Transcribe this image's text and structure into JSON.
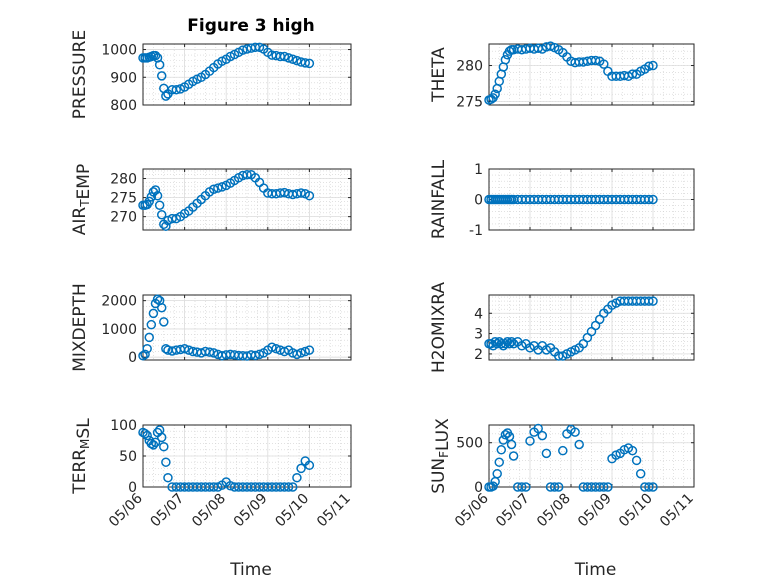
{
  "figure": {
    "title": "Figure 3 high",
    "marker_color": "#0072BD",
    "x_tick_labels": [
      "05/06",
      "05/07",
      "05/08",
      "05/09",
      "05/10",
      "05/11"
    ],
    "x_label": "Time"
  },
  "chart_data": [
    {
      "type": "scatter",
      "ylabel": "PRESSURE",
      "title": "Figure 3 high",
      "xlim": [
        0,
        5
      ],
      "ylim": [
        800,
        1020
      ],
      "yticks": [
        800,
        900,
        1000
      ],
      "grid": true,
      "series": [
        {
          "x": [
            0.0,
            0.05,
            0.1,
            0.15,
            0.2,
            0.25,
            0.3,
            0.35,
            0.4,
            0.45,
            0.5,
            0.55,
            0.6,
            0.7,
            0.8,
            0.9,
            1.0,
            1.1,
            1.2,
            1.3,
            1.4,
            1.5,
            1.6,
            1.7,
            1.8,
            1.9,
            2.0,
            2.1,
            2.2,
            2.3,
            2.4,
            2.5,
            2.6,
            2.7,
            2.8,
            2.9,
            3.0,
            3.1,
            3.2,
            3.3,
            3.4,
            3.5,
            3.6,
            3.7,
            3.8,
            3.9,
            4.0
          ],
          "y": [
            970,
            970,
            970,
            972,
            975,
            978,
            978,
            970,
            945,
            905,
            860,
            832,
            840,
            855,
            855,
            858,
            865,
            875,
            885,
            893,
            900,
            910,
            922,
            935,
            948,
            958,
            965,
            975,
            982,
            990,
            998,
            1002,
            1005,
            1008,
            1008,
            1002,
            990,
            980,
            978,
            975,
            975,
            970,
            965,
            960,
            955,
            952,
            950
          ]
        }
      ]
    },
    {
      "type": "scatter",
      "ylabel": "THETA",
      "xlim": [
        0,
        5
      ],
      "ylim": [
        274.5,
        283
      ],
      "yticks": [
        275,
        280
      ],
      "grid": true,
      "series": [
        {
          "x": [
            0.0,
            0.05,
            0.1,
            0.15,
            0.2,
            0.25,
            0.3,
            0.35,
            0.4,
            0.45,
            0.5,
            0.55,
            0.6,
            0.7,
            0.8,
            0.9,
            1.0,
            1.1,
            1.2,
            1.3,
            1.4,
            1.5,
            1.6,
            1.7,
            1.8,
            1.9,
            2.0,
            2.1,
            2.2,
            2.3,
            2.4,
            2.5,
            2.6,
            2.7,
            2.8,
            2.9,
            3.0,
            3.1,
            3.2,
            3.3,
            3.4,
            3.5,
            3.6,
            3.7,
            3.8,
            3.9,
            4.0
          ],
          "y": [
            275.2,
            275.3,
            275.5,
            276.0,
            276.8,
            277.8,
            278.8,
            279.8,
            280.8,
            281.5,
            282.0,
            282.2,
            282.2,
            282.3,
            282.2,
            282.3,
            282.4,
            282.3,
            282.4,
            282.3,
            282.6,
            282.7,
            282.5,
            282.2,
            281.8,
            281.2,
            280.6,
            280.4,
            280.5,
            280.5,
            280.6,
            280.7,
            280.7,
            280.6,
            280.2,
            279.2,
            278.5,
            278.5,
            278.5,
            278.6,
            278.5,
            278.8,
            278.8,
            279.2,
            279.5,
            279.9,
            280.0
          ]
        }
      ]
    },
    {
      "type": "scatter",
      "ylabel": "AIR_TEMP",
      "xlim": [
        0,
        5
      ],
      "ylim": [
        266.5,
        282.5
      ],
      "yticks": [
        270,
        275,
        280
      ],
      "grid": true,
      "series": [
        {
          "x": [
            0.0,
            0.05,
            0.1,
            0.15,
            0.2,
            0.25,
            0.3,
            0.35,
            0.4,
            0.45,
            0.5,
            0.55,
            0.6,
            0.7,
            0.8,
            0.9,
            1.0,
            1.1,
            1.2,
            1.3,
            1.4,
            1.5,
            1.6,
            1.7,
            1.8,
            1.9,
            2.0,
            2.1,
            2.2,
            2.3,
            2.4,
            2.5,
            2.6,
            2.7,
            2.8,
            2.9,
            3.0,
            3.1,
            3.2,
            3.3,
            3.4,
            3.5,
            3.6,
            3.7,
            3.8,
            3.9,
            4.0
          ],
          "y": [
            273.0,
            273.0,
            273.2,
            274.0,
            275.2,
            276.5,
            277.0,
            275.5,
            273.0,
            270.5,
            268.0,
            267.5,
            269.0,
            269.5,
            269.5,
            270.0,
            270.8,
            271.5,
            272.5,
            273.5,
            274.5,
            275.5,
            276.5,
            277.2,
            277.5,
            277.8,
            278.2,
            278.8,
            279.5,
            280.2,
            280.8,
            281.0,
            281.0,
            280.2,
            279.0,
            277.5,
            276.2,
            276.0,
            276.0,
            276.2,
            276.3,
            276.0,
            275.8,
            276.0,
            276.2,
            276.0,
            275.5
          ]
        }
      ]
    },
    {
      "type": "scatter",
      "ylabel": "RAINFALL",
      "xlim": [
        0,
        5
      ],
      "ylim": [
        -1,
        1
      ],
      "yticks": [
        -1,
        0,
        1
      ],
      "grid": true,
      "series": [
        {
          "x": [
            0.0,
            0.05,
            0.1,
            0.15,
            0.2,
            0.25,
            0.3,
            0.35,
            0.4,
            0.45,
            0.5,
            0.55,
            0.6,
            0.7,
            0.8,
            0.9,
            1.0,
            1.1,
            1.2,
            1.3,
            1.4,
            1.5,
            1.6,
            1.7,
            1.8,
            1.9,
            2.0,
            2.1,
            2.2,
            2.3,
            2.4,
            2.5,
            2.6,
            2.7,
            2.8,
            2.9,
            3.0,
            3.1,
            3.2,
            3.3,
            3.4,
            3.5,
            3.6,
            3.7,
            3.8,
            3.9,
            4.0
          ],
          "y": [
            0,
            0,
            0,
            0,
            0,
            0,
            0,
            0,
            0,
            0,
            0,
            0,
            0,
            0,
            0,
            0,
            0,
            0,
            0,
            0,
            0,
            0,
            0,
            0,
            0,
            0,
            0,
            0,
            0,
            0,
            0,
            0,
            0,
            0,
            0,
            0,
            0,
            0,
            0,
            0,
            0,
            0,
            0,
            0,
            0,
            0,
            0
          ]
        }
      ]
    },
    {
      "type": "scatter",
      "ylabel": "MIXDEPTH",
      "xlim": [
        0,
        5
      ],
      "ylim": [
        -100,
        2200
      ],
      "yticks": [
        0,
        1000,
        2000
      ],
      "grid": true,
      "series": [
        {
          "x": [
            0.0,
            0.05,
            0.1,
            0.15,
            0.2,
            0.25,
            0.3,
            0.35,
            0.4,
            0.45,
            0.5,
            0.55,
            0.6,
            0.7,
            0.8,
            0.9,
            1.0,
            1.1,
            1.2,
            1.3,
            1.4,
            1.5,
            1.6,
            1.7,
            1.8,
            1.9,
            2.0,
            2.1,
            2.2,
            2.3,
            2.4,
            2.5,
            2.6,
            2.7,
            2.8,
            2.9,
            3.0,
            3.1,
            3.2,
            3.3,
            3.4,
            3.5,
            3.6,
            3.7,
            3.8,
            3.9,
            4.0
          ],
          "y": [
            50,
            100,
            300,
            700,
            1150,
            1550,
            1900,
            2050,
            2000,
            1750,
            1250,
            300,
            250,
            220,
            250,
            270,
            300,
            250,
            200,
            180,
            150,
            200,
            180,
            150,
            100,
            50,
            80,
            100,
            80,
            60,
            50,
            40,
            80,
            60,
            100,
            150,
            250,
            350,
            300,
            250,
            200,
            250,
            150,
            100,
            150,
            200,
            250
          ]
        }
      ]
    },
    {
      "type": "scatter",
      "ylabel": "H2OMIXRA",
      "xlim": [
        0,
        5
      ],
      "ylim": [
        1.7,
        4.9
      ],
      "yticks": [
        2,
        3,
        4
      ],
      "grid": true,
      "series": [
        {
          "x": [
            0.0,
            0.05,
            0.1,
            0.15,
            0.2,
            0.25,
            0.3,
            0.35,
            0.4,
            0.45,
            0.5,
            0.55,
            0.6,
            0.7,
            0.8,
            0.9,
            1.0,
            1.1,
            1.2,
            1.3,
            1.4,
            1.5,
            1.6,
            1.7,
            1.8,
            1.9,
            2.0,
            2.1,
            2.2,
            2.3,
            2.4,
            2.5,
            2.6,
            2.7,
            2.8,
            2.9,
            3.0,
            3.1,
            3.2,
            3.3,
            3.4,
            3.5,
            3.6,
            3.7,
            3.8,
            3.9,
            4.0
          ],
          "y": [
            2.5,
            2.5,
            2.4,
            2.6,
            2.5,
            2.6,
            2.5,
            2.4,
            2.5,
            2.6,
            2.5,
            2.6,
            2.5,
            2.6,
            2.4,
            2.5,
            2.3,
            2.4,
            2.2,
            2.4,
            2.2,
            2.3,
            2.1,
            1.9,
            1.9,
            2.0,
            2.1,
            2.2,
            2.3,
            2.5,
            2.8,
            3.1,
            3.4,
            3.7,
            4.0,
            4.2,
            4.4,
            4.5,
            4.6,
            4.6,
            4.6,
            4.6,
            4.6,
            4.6,
            4.6,
            4.6,
            4.6
          ]
        }
      ]
    },
    {
      "type": "scatter",
      "ylabel": "TERR_MSL",
      "xlim": [
        0,
        5
      ],
      "ylim": [
        0,
        100
      ],
      "yticks": [
        0,
        50,
        100
      ],
      "grid": true,
      "series": [
        {
          "x": [
            0.0,
            0.05,
            0.1,
            0.15,
            0.2,
            0.25,
            0.3,
            0.35,
            0.4,
            0.45,
            0.5,
            0.55,
            0.6,
            0.7,
            0.8,
            0.9,
            1.0,
            1.1,
            1.2,
            1.3,
            1.4,
            1.5,
            1.6,
            1.7,
            1.8,
            1.9,
            2.0,
            2.1,
            2.2,
            2.3,
            2.4,
            2.5,
            2.6,
            2.7,
            2.8,
            2.9,
            3.0,
            3.1,
            3.2,
            3.3,
            3.4,
            3.5,
            3.6,
            3.7,
            3.8,
            3.9,
            4.0
          ],
          "y": [
            88,
            86,
            83,
            75,
            70,
            68,
            72,
            88,
            92,
            80,
            65,
            40,
            15,
            0,
            0,
            0,
            0,
            0,
            0,
            0,
            0,
            0,
            0,
            0,
            0,
            3,
            8,
            2,
            0,
            0,
            0,
            0,
            0,
            0,
            0,
            0,
            0,
            0,
            0,
            0,
            0,
            0,
            0,
            15,
            30,
            42,
            35
          ]
        }
      ]
    },
    {
      "type": "scatter",
      "ylabel": "SUN_FLUX",
      "xlim": [
        0,
        5
      ],
      "ylim": [
        0,
        700
      ],
      "yticks": [
        0,
        500
      ],
      "grid": true,
      "series": [
        {
          "x": [
            0.0,
            0.05,
            0.1,
            0.15,
            0.2,
            0.25,
            0.3,
            0.35,
            0.4,
            0.45,
            0.5,
            0.55,
            0.6,
            0.7,
            0.8,
            0.9,
            1.0,
            1.1,
            1.2,
            1.3,
            1.4,
            1.5,
            1.6,
            1.7,
            1.8,
            1.9,
            2.0,
            2.1,
            2.2,
            2.3,
            2.4,
            2.5,
            2.6,
            2.7,
            2.8,
            2.9,
            3.0,
            3.1,
            3.2,
            3.3,
            3.4,
            3.5,
            3.6,
            3.7,
            3.8,
            3.9,
            4.0
          ],
          "y": [
            0,
            0,
            10,
            60,
            150,
            280,
            420,
            530,
            590,
            610,
            570,
            480,
            350,
            0,
            0,
            0,
            520,
            620,
            660,
            580,
            380,
            0,
            0,
            0,
            410,
            600,
            650,
            620,
            480,
            0,
            0,
            0,
            0,
            0,
            0,
            0,
            320,
            360,
            380,
            420,
            440,
            410,
            300,
            150,
            0,
            0,
            0
          ]
        }
      ]
    }
  ]
}
